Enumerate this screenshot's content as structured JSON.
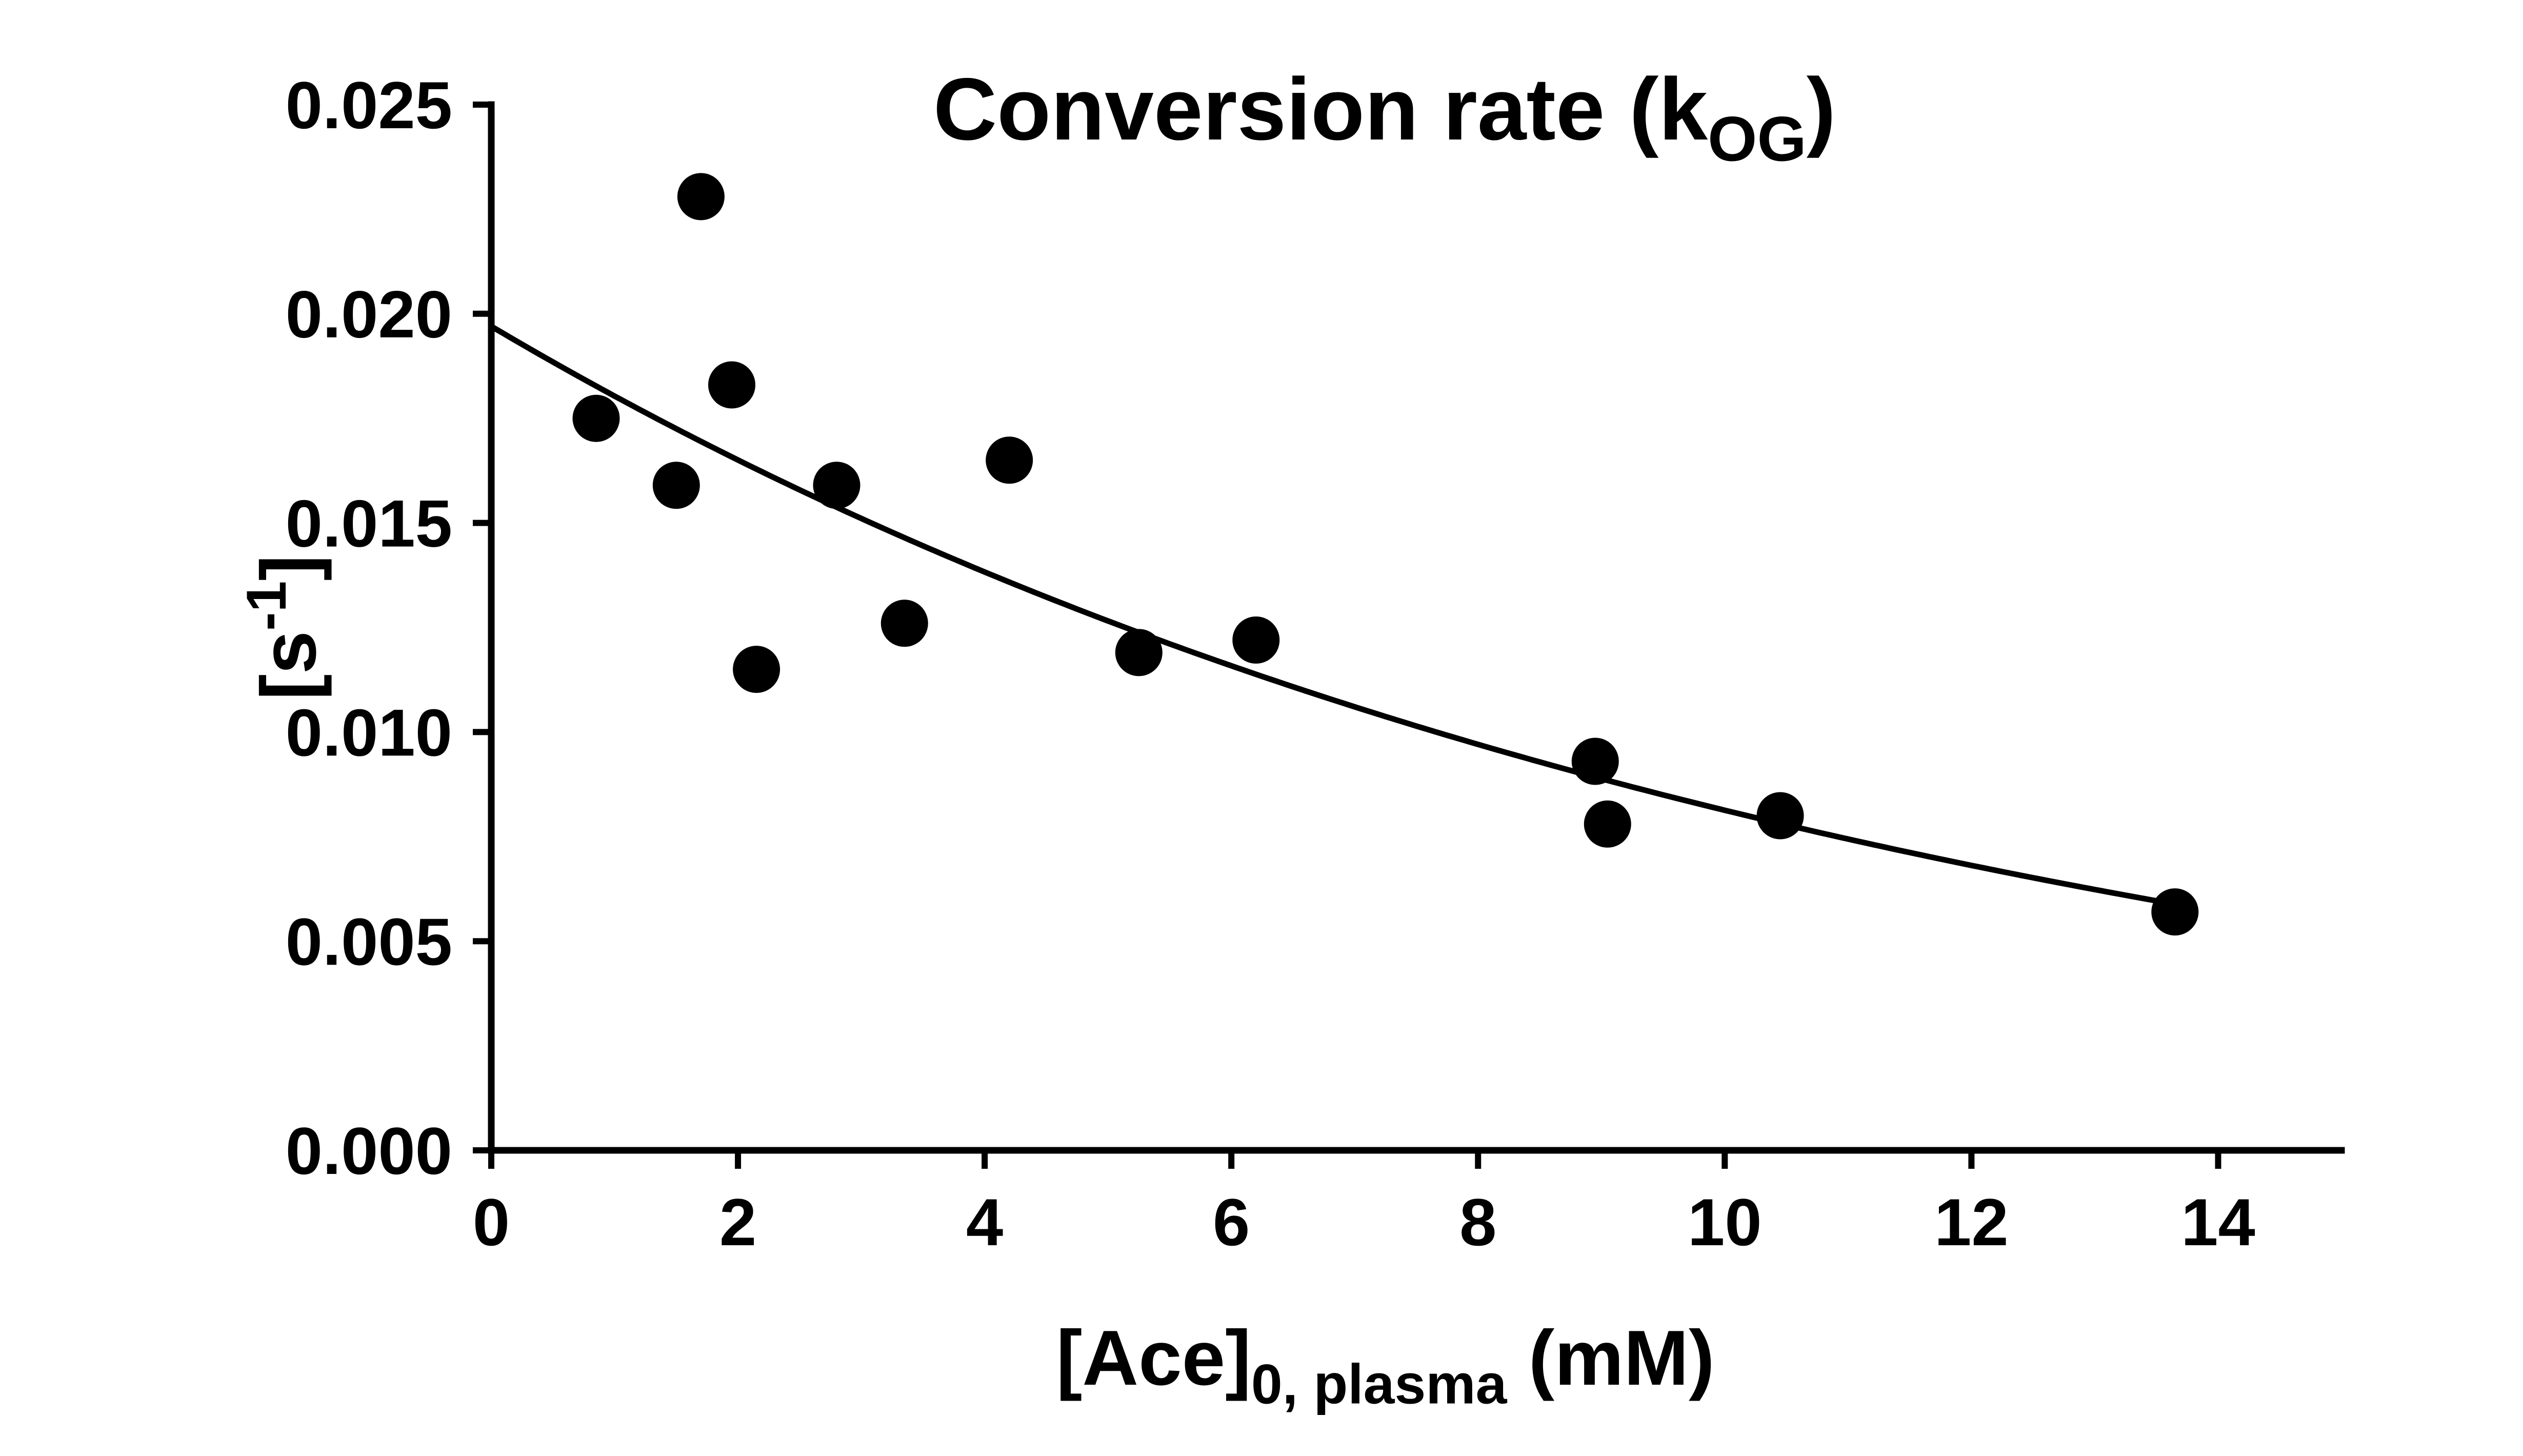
{
  "page": {
    "background": "#ffffff"
  },
  "chart_data": {
    "type": "scatter",
    "title": {
      "plain": "Conversion rate (kOG)",
      "parts": [
        {
          "text": "Conversion rate (k"
        },
        {
          "text": "OG",
          "script": "sub"
        },
        {
          "text": ")"
        }
      ]
    },
    "x_axis": {
      "plain_label": "[Ace]0, plasma (mM)",
      "label_parts": [
        {
          "text": "[Ace]"
        },
        {
          "text": "0, plasma",
          "script": "sub"
        },
        {
          "text": " (mM)"
        }
      ],
      "min": 0,
      "max": 15,
      "ticks": [
        0,
        2,
        4,
        6,
        8,
        10,
        12,
        14
      ],
      "tick_decimals": 0
    },
    "y_axis": {
      "plain_label": "[s-1]",
      "label_parts": [
        {
          "text": "[s"
        },
        {
          "text": "-1",
          "script": "sup"
        },
        {
          "text": "]"
        }
      ],
      "min": 0,
      "max": 0.025,
      "ticks": [
        0,
        0.005,
        0.01,
        0.015,
        0.02,
        0.025
      ],
      "tick_decimals": 3
    },
    "points": [
      {
        "x": 0.85,
        "y": 0.0175
      },
      {
        "x": 1.5,
        "y": 0.0159
      },
      {
        "x": 1.7,
        "y": 0.0228
      },
      {
        "x": 1.95,
        "y": 0.0183
      },
      {
        "x": 2.15,
        "y": 0.0115
      },
      {
        "x": 2.8,
        "y": 0.0159
      },
      {
        "x": 3.35,
        "y": 0.0126
      },
      {
        "x": 4.2,
        "y": 0.0165
      },
      {
        "x": 5.25,
        "y": 0.0119
      },
      {
        "x": 6.2,
        "y": 0.0122
      },
      {
        "x": 8.95,
        "y": 0.0093
      },
      {
        "x": 9.05,
        "y": 0.0078
      },
      {
        "x": 10.45,
        "y": 0.008
      },
      {
        "x": 13.65,
        "y": 0.0057
      }
    ],
    "fit_curve": {
      "model": "one_phase_exponential_decay",
      "y0": 0.0197,
      "k": 0.0885,
      "x_start": 0,
      "x_end": 13.8
    },
    "colors": {
      "points": "#000000",
      "curve": "#000000",
      "axis": "#000000",
      "text": "#000000"
    },
    "grid": false,
    "legend": null,
    "ticks_direction": "out"
  }
}
